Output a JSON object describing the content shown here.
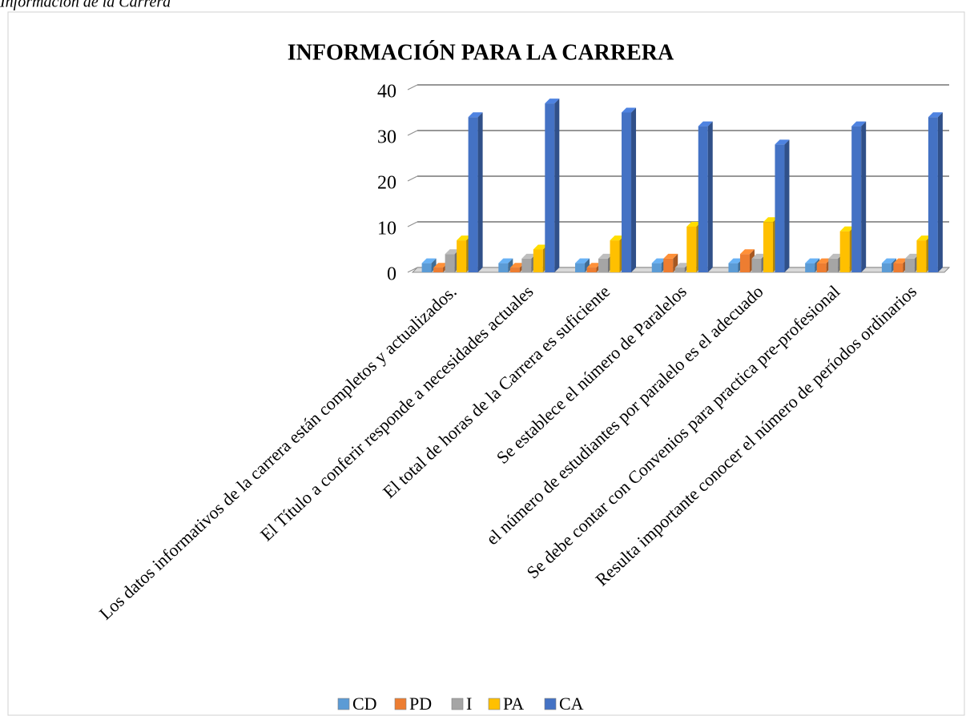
{
  "caption": "Información de la Carrera",
  "chart_data": {
    "type": "bar3d",
    "title": "INFORMACIÓN PARA LA CARRERA",
    "categories": [
      "Los datos informativos de la carrera están completos y actualizados.",
      "El Título a conferir responde a necesidades actuales",
      "El total de horas de la Carrera es suficiente",
      "Se establece el número de Paralelos",
      "el número de estudiantes por paralelo es el adecuado",
      "Se debe contar con Convenios para practica pre-profesional",
      "Resulta importante conocer  el número de períodos ordinarios"
    ],
    "series": [
      {
        "name": "CD",
        "color": "#5b9bd5",
        "values": [
          2,
          2,
          2,
          2,
          2,
          2,
          2
        ]
      },
      {
        "name": "PD",
        "color": "#ed7d31",
        "values": [
          1,
          1,
          1,
          3,
          4,
          2,
          2
        ]
      },
      {
        "name": "I",
        "color": "#a5a5a5",
        "values": [
          4,
          3,
          3,
          1,
          3,
          3,
          3
        ]
      },
      {
        "name": "PA",
        "color": "#ffc000",
        "values": [
          7,
          5,
          7,
          10,
          11,
          9,
          7
        ]
      },
      {
        "name": "CA",
        "color": "#4472c4",
        "values": [
          34,
          37,
          35,
          32,
          28,
          32,
          34
        ]
      }
    ],
    "ylim": [
      0,
      40
    ],
    "yticks": [
      0,
      10,
      20,
      30,
      40
    ],
    "grid": true,
    "legend": "bottom"
  }
}
